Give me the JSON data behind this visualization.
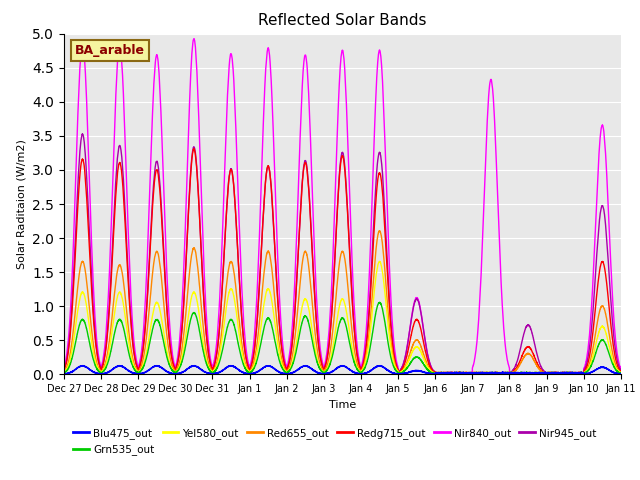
{
  "title": "Reflected Solar Bands",
  "ylabel": "Solar Raditaion (W/m2)",
  "xlabel": "Time",
  "annotation": "BA_arable",
  "ylim": [
    0,
    5.0
  ],
  "yticks": [
    0.0,
    0.5,
    1.0,
    1.5,
    2.0,
    2.5,
    3.0,
    3.5,
    4.0,
    4.5,
    5.0
  ],
  "bg_color": "#e8e8e8",
  "series": [
    {
      "label": "Blu475_out",
      "color": "#0000ff"
    },
    {
      "label": "Grn535_out",
      "color": "#00cc00"
    },
    {
      "label": "Yel580_out",
      "color": "#ffff00"
    },
    {
      "label": "Red655_out",
      "color": "#ff8800"
    },
    {
      "label": "Redg715_out",
      "color": "#ff0000"
    },
    {
      "label": "Nir840_out",
      "color": "#ff00ff"
    },
    {
      "label": "Nir945_out",
      "color": "#aa00aa"
    }
  ],
  "xtick_labels": [
    "Dec 27",
    "Dec 28",
    "Dec 29",
    "Dec 30",
    "Dec 31",
    "Jan 1",
    "Jan 2",
    "Jan 3",
    "Jan 4",
    "Jan 5",
    "Jan 6",
    "Jan 7",
    "Jan 8",
    "Jan 9",
    "Jan 10",
    "Jan 11"
  ],
  "n_days": 15,
  "peaks_nir840": [
    4.85,
    4.82,
    4.68,
    4.92,
    4.7,
    4.78,
    4.68,
    4.75,
    4.75,
    1.12,
    0.0,
    4.32,
    0.0,
    0.0,
    3.65
  ],
  "peaks_nir945": [
    3.52,
    3.35,
    3.12,
    3.33,
    3.01,
    3.05,
    3.13,
    3.25,
    3.25,
    1.1,
    0.0,
    0.0,
    0.72,
    0.0,
    2.47
  ],
  "peaks_redg715": [
    3.15,
    3.1,
    3.0,
    3.3,
    3.0,
    3.05,
    3.1,
    3.2,
    2.95,
    0.8,
    0.0,
    0.0,
    0.4,
    0.0,
    1.65
  ],
  "peaks_red655": [
    1.65,
    1.6,
    1.8,
    1.85,
    1.65,
    1.8,
    1.8,
    1.8,
    2.1,
    0.5,
    0.0,
    0.0,
    0.3,
    0.0,
    1.0
  ],
  "peaks_yel580": [
    1.2,
    1.2,
    1.05,
    1.2,
    1.25,
    1.25,
    1.1,
    1.1,
    1.65,
    0.4,
    0.0,
    0.0,
    0.0,
    0.0,
    0.7
  ],
  "peaks_grn535": [
    0.8,
    0.8,
    0.8,
    0.9,
    0.8,
    0.82,
    0.85,
    0.82,
    1.05,
    0.25,
    0.0,
    0.0,
    0.0,
    0.0,
    0.5
  ],
  "peaks_blu475": [
    0.12,
    0.12,
    0.12,
    0.12,
    0.12,
    0.12,
    0.12,
    0.12,
    0.12,
    0.05,
    0.0,
    0.0,
    0.0,
    0.0,
    0.1
  ],
  "sigma": 0.18,
  "pts_per_day": 300
}
